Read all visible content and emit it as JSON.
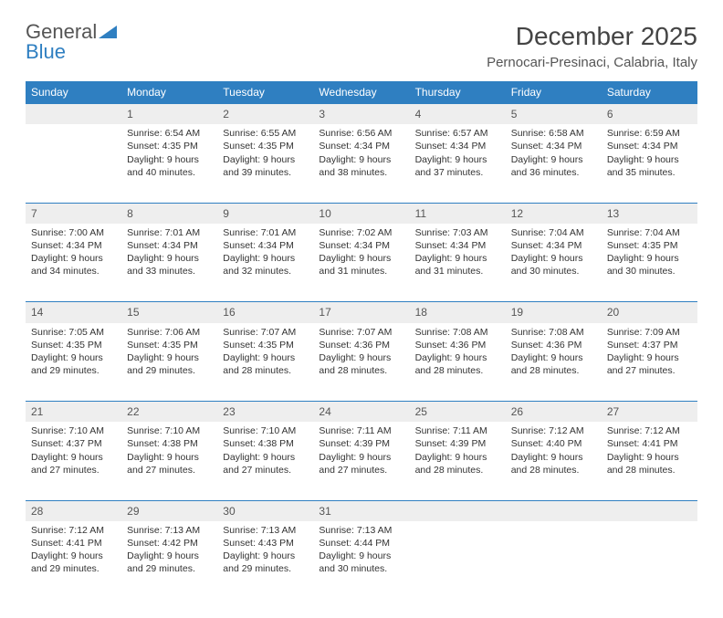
{
  "logo": {
    "text1": "General",
    "text2": "Blue"
  },
  "title": "December 2025",
  "location": "Pernocari-Presinaci, Calabria, Italy",
  "colors": {
    "header_bg": "#2f7fc1",
    "header_text": "#ffffff",
    "daynum_bg": "#eeeeee",
    "rule": "#2f7fc1",
    "body_text": "#333333",
    "page_bg": "#ffffff"
  },
  "days": [
    "Sunday",
    "Monday",
    "Tuesday",
    "Wednesday",
    "Thursday",
    "Friday",
    "Saturday"
  ],
  "weeks": [
    [
      null,
      {
        "n": "1",
        "sr": "Sunrise: 6:54 AM",
        "ss": "Sunset: 4:35 PM",
        "dl": "Daylight: 9 hours and 40 minutes."
      },
      {
        "n": "2",
        "sr": "Sunrise: 6:55 AM",
        "ss": "Sunset: 4:35 PM",
        "dl": "Daylight: 9 hours and 39 minutes."
      },
      {
        "n": "3",
        "sr": "Sunrise: 6:56 AM",
        "ss": "Sunset: 4:34 PM",
        "dl": "Daylight: 9 hours and 38 minutes."
      },
      {
        "n": "4",
        "sr": "Sunrise: 6:57 AM",
        "ss": "Sunset: 4:34 PM",
        "dl": "Daylight: 9 hours and 37 minutes."
      },
      {
        "n": "5",
        "sr": "Sunrise: 6:58 AM",
        "ss": "Sunset: 4:34 PM",
        "dl": "Daylight: 9 hours and 36 minutes."
      },
      {
        "n": "6",
        "sr": "Sunrise: 6:59 AM",
        "ss": "Sunset: 4:34 PM",
        "dl": "Daylight: 9 hours and 35 minutes."
      }
    ],
    [
      {
        "n": "7",
        "sr": "Sunrise: 7:00 AM",
        "ss": "Sunset: 4:34 PM",
        "dl": "Daylight: 9 hours and 34 minutes."
      },
      {
        "n": "8",
        "sr": "Sunrise: 7:01 AM",
        "ss": "Sunset: 4:34 PM",
        "dl": "Daylight: 9 hours and 33 minutes."
      },
      {
        "n": "9",
        "sr": "Sunrise: 7:01 AM",
        "ss": "Sunset: 4:34 PM",
        "dl": "Daylight: 9 hours and 32 minutes."
      },
      {
        "n": "10",
        "sr": "Sunrise: 7:02 AM",
        "ss": "Sunset: 4:34 PM",
        "dl": "Daylight: 9 hours and 31 minutes."
      },
      {
        "n": "11",
        "sr": "Sunrise: 7:03 AM",
        "ss": "Sunset: 4:34 PM",
        "dl": "Daylight: 9 hours and 31 minutes."
      },
      {
        "n": "12",
        "sr": "Sunrise: 7:04 AM",
        "ss": "Sunset: 4:34 PM",
        "dl": "Daylight: 9 hours and 30 minutes."
      },
      {
        "n": "13",
        "sr": "Sunrise: 7:04 AM",
        "ss": "Sunset: 4:35 PM",
        "dl": "Daylight: 9 hours and 30 minutes."
      }
    ],
    [
      {
        "n": "14",
        "sr": "Sunrise: 7:05 AM",
        "ss": "Sunset: 4:35 PM",
        "dl": "Daylight: 9 hours and 29 minutes."
      },
      {
        "n": "15",
        "sr": "Sunrise: 7:06 AM",
        "ss": "Sunset: 4:35 PM",
        "dl": "Daylight: 9 hours and 29 minutes."
      },
      {
        "n": "16",
        "sr": "Sunrise: 7:07 AM",
        "ss": "Sunset: 4:35 PM",
        "dl": "Daylight: 9 hours and 28 minutes."
      },
      {
        "n": "17",
        "sr": "Sunrise: 7:07 AM",
        "ss": "Sunset: 4:36 PM",
        "dl": "Daylight: 9 hours and 28 minutes."
      },
      {
        "n": "18",
        "sr": "Sunrise: 7:08 AM",
        "ss": "Sunset: 4:36 PM",
        "dl": "Daylight: 9 hours and 28 minutes."
      },
      {
        "n": "19",
        "sr": "Sunrise: 7:08 AM",
        "ss": "Sunset: 4:36 PM",
        "dl": "Daylight: 9 hours and 28 minutes."
      },
      {
        "n": "20",
        "sr": "Sunrise: 7:09 AM",
        "ss": "Sunset: 4:37 PM",
        "dl": "Daylight: 9 hours and 27 minutes."
      }
    ],
    [
      {
        "n": "21",
        "sr": "Sunrise: 7:10 AM",
        "ss": "Sunset: 4:37 PM",
        "dl": "Daylight: 9 hours and 27 minutes."
      },
      {
        "n": "22",
        "sr": "Sunrise: 7:10 AM",
        "ss": "Sunset: 4:38 PM",
        "dl": "Daylight: 9 hours and 27 minutes."
      },
      {
        "n": "23",
        "sr": "Sunrise: 7:10 AM",
        "ss": "Sunset: 4:38 PM",
        "dl": "Daylight: 9 hours and 27 minutes."
      },
      {
        "n": "24",
        "sr": "Sunrise: 7:11 AM",
        "ss": "Sunset: 4:39 PM",
        "dl": "Daylight: 9 hours and 27 minutes."
      },
      {
        "n": "25",
        "sr": "Sunrise: 7:11 AM",
        "ss": "Sunset: 4:39 PM",
        "dl": "Daylight: 9 hours and 28 minutes."
      },
      {
        "n": "26",
        "sr": "Sunrise: 7:12 AM",
        "ss": "Sunset: 4:40 PM",
        "dl": "Daylight: 9 hours and 28 minutes."
      },
      {
        "n": "27",
        "sr": "Sunrise: 7:12 AM",
        "ss": "Sunset: 4:41 PM",
        "dl": "Daylight: 9 hours and 28 minutes."
      }
    ],
    [
      {
        "n": "28",
        "sr": "Sunrise: 7:12 AM",
        "ss": "Sunset: 4:41 PM",
        "dl": "Daylight: 9 hours and 29 minutes."
      },
      {
        "n": "29",
        "sr": "Sunrise: 7:13 AM",
        "ss": "Sunset: 4:42 PM",
        "dl": "Daylight: 9 hours and 29 minutes."
      },
      {
        "n": "30",
        "sr": "Sunrise: 7:13 AM",
        "ss": "Sunset: 4:43 PM",
        "dl": "Daylight: 9 hours and 29 minutes."
      },
      {
        "n": "31",
        "sr": "Sunrise: 7:13 AM",
        "ss": "Sunset: 4:44 PM",
        "dl": "Daylight: 9 hours and 30 minutes."
      },
      null,
      null,
      null
    ]
  ]
}
